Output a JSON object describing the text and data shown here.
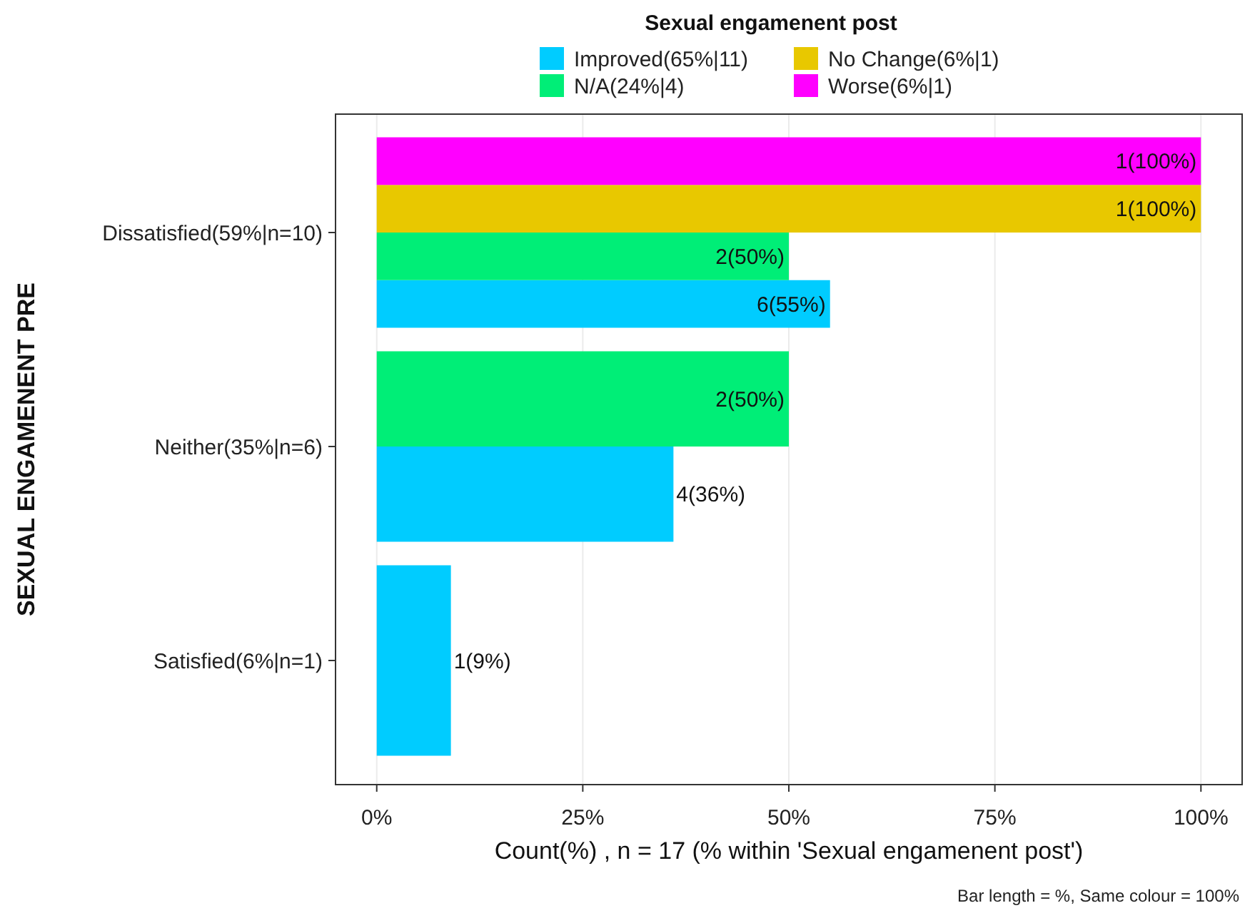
{
  "chart_data": {
    "type": "bar",
    "orientation": "horizontal",
    "legend_title": "Sexual engamenent post",
    "xlabel": "Count(%) , n = 17 (% within 'Sexual engamenent post')",
    "ylabel": "SEXUAL ENGAMENENT PRE",
    "categories": [
      "Dissatisfied(59%|n=10)",
      "Neither(35%|n=6)",
      "Satisfied(6%|n=1)"
    ],
    "series": [
      {
        "name": "Improved(65%|11)",
        "color": "#00ccff",
        "values": [
          55,
          36,
          9
        ],
        "value_labels": [
          "6(55%)",
          "4(36%)",
          "1(9%)"
        ]
      },
      {
        "name": "N/A(24%|4)",
        "color": "#00ee77",
        "values": [
          50,
          50,
          null
        ],
        "value_labels": [
          "2(50%)",
          "2(50%)",
          null
        ]
      },
      {
        "name": "No Change(6%|1)",
        "color": "#e8c800",
        "values": [
          100,
          null,
          null
        ],
        "value_labels": [
          "1(100%)",
          null,
          null
        ]
      },
      {
        "name": "Worse(6%|1)",
        "color": "#ff00ff",
        "values": [
          100,
          null,
          null
        ],
        "value_labels": [
          "1(100%)",
          null,
          null
        ]
      }
    ],
    "xlim": [
      -5,
      105
    ],
    "xticks": [
      {
        "value": 0,
        "label": "0%"
      },
      {
        "value": 25,
        "label": "25%"
      },
      {
        "value": 50,
        "label": "50%"
      },
      {
        "value": 75,
        "label": "75%"
      },
      {
        "value": 100,
        "label": "100%"
      }
    ],
    "grid": "x",
    "legend": "top",
    "annotations": [
      "Bar length = %, Same colour = 100%"
    ]
  }
}
